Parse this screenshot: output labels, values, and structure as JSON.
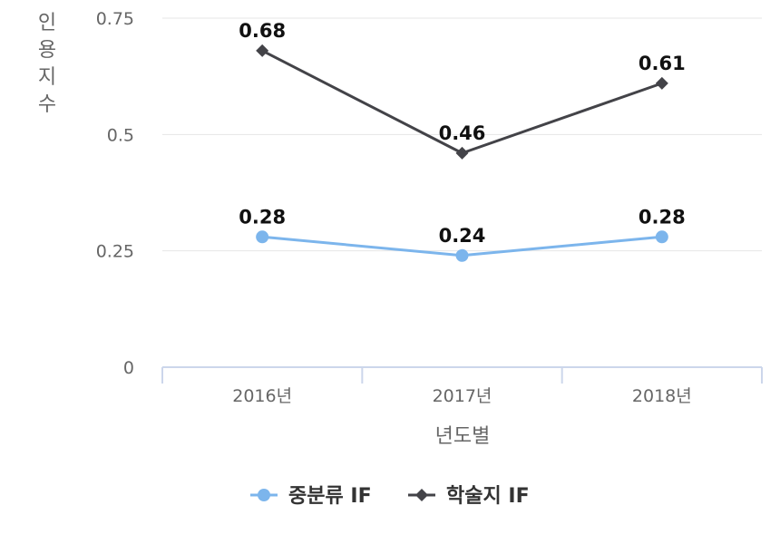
{
  "chart_data": {
    "type": "line",
    "categories": [
      "2016년",
      "2017년",
      "2018년"
    ],
    "series": [
      {
        "name": "중분류 IF",
        "values": [
          0.28,
          0.24,
          0.28
        ],
        "color": "#7cb5ec",
        "marker": "circle"
      },
      {
        "name": "학술지 IF",
        "values": [
          0.68,
          0.46,
          0.61
        ],
        "color": "#434348",
        "marker": "diamond"
      }
    ],
    "xlabel": "년도별",
    "ylabel": "인용지수",
    "ylim": [
      0,
      0.75
    ],
    "yticks": [
      {
        "value": 0,
        "label": "0"
      },
      {
        "value": 0.25,
        "label": "0.25"
      },
      {
        "value": 0.5,
        "label": "0.5"
      },
      {
        "value": 0.75,
        "label": "0.75"
      }
    ],
    "data_labels": true,
    "grid": true,
    "legend": "bottom-center"
  }
}
